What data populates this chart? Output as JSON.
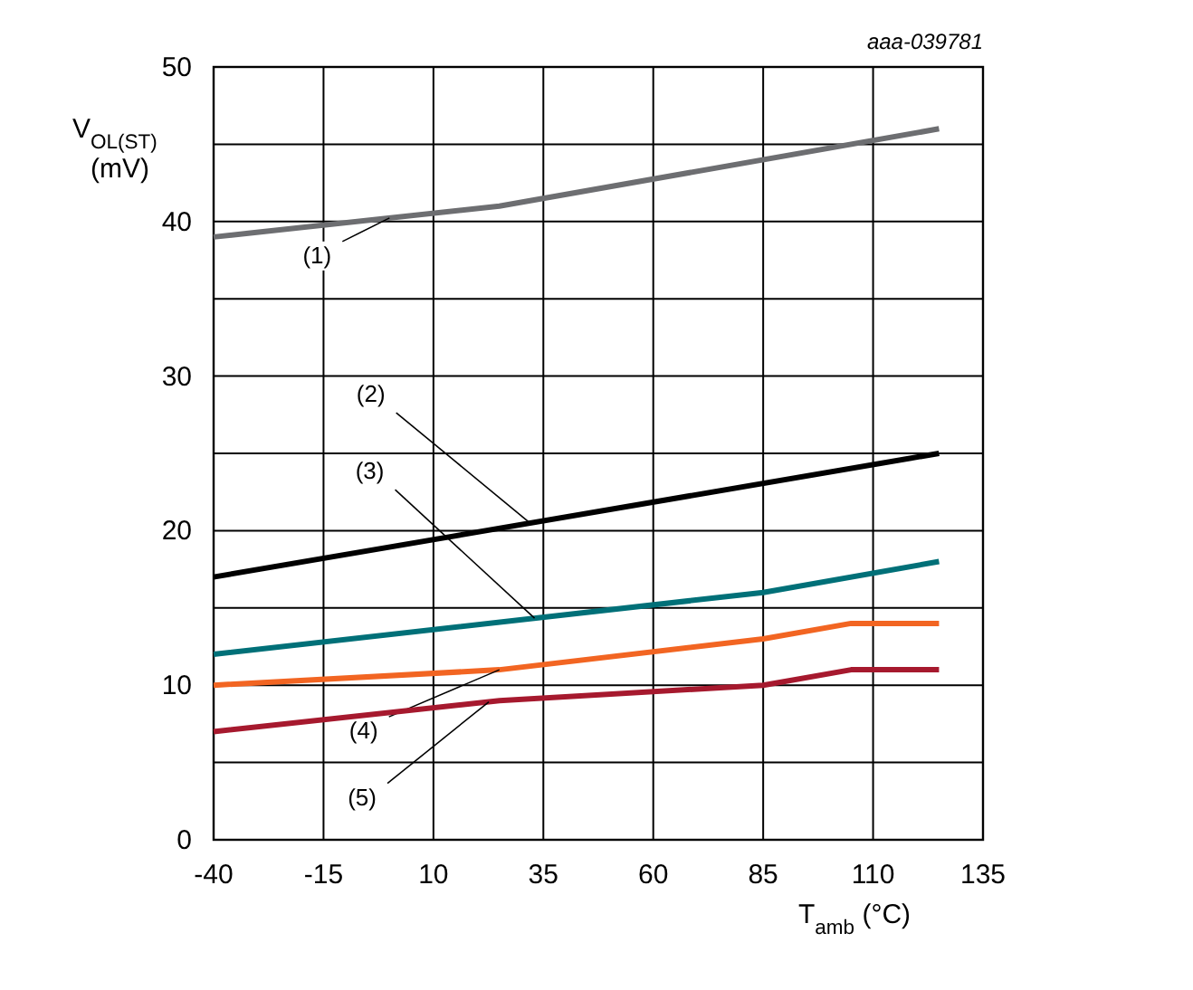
{
  "chart_data": {
    "type": "line",
    "xlabel": "T$_{amb}$ (°C)",
    "ylabel": "V$_{OL(ST)}$ (mV)",
    "annotations": [
      "aaa-039781"
    ],
    "xlim": [
      -40,
      135
    ],
    "xticks": [
      -40,
      -15,
      10,
      35,
      60,
      85,
      110,
      135
    ],
    "ylim": [
      0,
      50
    ],
    "yticks": [
      0,
      {
        "value": 5,
        "label": null
      },
      10,
      {
        "value": 15,
        "label": null
      },
      20,
      {
        "value": 25,
        "label": null
      },
      30,
      {
        "value": 35,
        "label": null
      },
      40,
      {
        "value": 45,
        "label": null
      },
      50
    ],
    "grid": true,
    "marker": "none",
    "line_style": "solid",
    "series": [
      {
        "name": "(1)",
        "color": "#6d6e71",
        "x": [
          -40,
          25,
          125
        ],
        "values": [
          39,
          41,
          46
        ]
      },
      {
        "name": "(2)",
        "color": "#000000",
        "x": [
          -40,
          125
        ],
        "values": [
          17,
          25
        ]
      },
      {
        "name": "(3)",
        "color": "#007078",
        "x": [
          -40,
          85,
          125
        ],
        "values": [
          12,
          16,
          18
        ]
      },
      {
        "name": "(4)",
        "color": "#f26522",
        "x": [
          -40,
          25,
          85,
          105,
          125
        ],
        "values": [
          10,
          11,
          13,
          14,
          14
        ]
      },
      {
        "name": "(5)",
        "color": "#a6192e",
        "x": [
          -40,
          25,
          85,
          105,
          125
        ],
        "values": [
          7,
          9,
          10,
          11,
          11
        ]
      }
    ]
  }
}
